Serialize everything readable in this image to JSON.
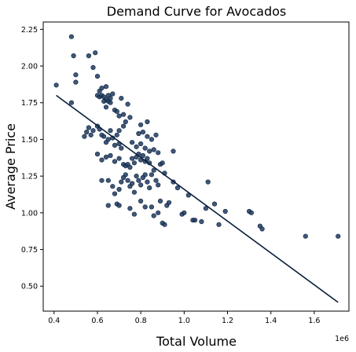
{
  "chart_data": {
    "type": "scatter",
    "title": "Demand Curve for Avocados",
    "xlabel": "Total Volume",
    "ylabel": "Average Price",
    "x_offset_label": "1e6",
    "xlim": [
      0.35,
      1.76
    ],
    "ylim": [
      0.33,
      2.3
    ],
    "x_ticks": [
      0.4,
      0.6,
      0.8,
      1.0,
      1.2,
      1.4,
      1.6
    ],
    "x_tick_labels": [
      "0.4",
      "0.6",
      "0.8",
      "1.0",
      "1.2",
      "1.4",
      "1.6"
    ],
    "y_ticks": [
      0.5,
      0.75,
      1.0,
      1.25,
      1.5,
      1.75,
      2.0,
      2.25
    ],
    "y_tick_labels": [
      "0.50",
      "0.75",
      "1.00",
      "1.25",
      "1.50",
      "1.75",
      "2.00",
      "2.25"
    ],
    "grid": false,
    "colors": {
      "points": "#1f3a5f",
      "point_edge": "#0d2240",
      "line": "#0a1f3d"
    },
    "series": [
      {
        "points": [
          [
            0.41,
            1.87
          ],
          [
            0.48,
            2.2
          ],
          [
            0.49,
            2.07
          ],
          [
            0.5,
            1.94
          ],
          [
            0.5,
            1.89
          ],
          [
            0.48,
            1.75
          ],
          [
            0.56,
            2.07
          ],
          [
            0.59,
            2.09
          ],
          [
            0.58,
            1.99
          ],
          [
            0.6,
            1.93
          ],
          [
            0.54,
            1.52
          ],
          [
            0.55,
            1.55
          ],
          [
            0.56,
            1.58
          ],
          [
            0.57,
            1.53
          ],
          [
            0.58,
            1.56
          ],
          [
            0.6,
            1.8
          ],
          [
            0.61,
            1.79
          ],
          [
            0.62,
            1.8
          ],
          [
            0.61,
            1.83
          ],
          [
            0.63,
            1.79
          ],
          [
            0.62,
            1.85
          ],
          [
            0.64,
            1.86
          ],
          [
            0.64,
            1.77
          ],
          [
            0.65,
            1.76
          ],
          [
            0.65,
            1.8
          ],
          [
            0.66,
            1.78
          ],
          [
            0.67,
            1.81
          ],
          [
            0.63,
            1.76
          ],
          [
            0.66,
            1.75
          ],
          [
            0.64,
            1.72
          ],
          [
            0.68,
            1.7
          ],
          [
            0.69,
            1.69
          ],
          [
            0.7,
            1.66
          ],
          [
            0.72,
            1.67
          ],
          [
            0.73,
            1.62
          ],
          [
            0.71,
            1.78
          ],
          [
            0.74,
            1.74
          ],
          [
            0.75,
            1.65
          ],
          [
            0.7,
            1.56
          ],
          [
            0.72,
            1.59
          ],
          [
            0.6,
            1.59
          ],
          [
            0.61,
            1.57
          ],
          [
            0.62,
            1.53
          ],
          [
            0.63,
            1.52
          ],
          [
            0.64,
            1.48
          ],
          [
            0.65,
            1.5
          ],
          [
            0.66,
            1.56
          ],
          [
            0.67,
            1.51
          ],
          [
            0.68,
            1.46
          ],
          [
            0.69,
            1.53
          ],
          [
            0.7,
            1.47
          ],
          [
            0.71,
            1.44
          ],
          [
            0.6,
            1.4
          ],
          [
            0.62,
            1.36
          ],
          [
            0.64,
            1.38
          ],
          [
            0.66,
            1.39
          ],
          [
            0.68,
            1.35
          ],
          [
            0.7,
            1.37
          ],
          [
            0.72,
            1.33
          ],
          [
            0.73,
            1.32
          ],
          [
            0.74,
            1.33
          ],
          [
            0.75,
            1.31
          ],
          [
            0.76,
            1.37
          ],
          [
            0.77,
            1.34
          ],
          [
            0.78,
            1.38
          ],
          [
            0.79,
            1.4
          ],
          [
            0.8,
            1.36
          ],
          [
            0.81,
            1.39
          ],
          [
            0.82,
            1.35
          ],
          [
            0.83,
            1.37
          ],
          [
            0.84,
            1.34
          ],
          [
            0.76,
            1.48
          ],
          [
            0.78,
            1.45
          ],
          [
            0.8,
            1.47
          ],
          [
            0.82,
            1.44
          ],
          [
            0.84,
            1.42
          ],
          [
            0.86,
            1.43
          ],
          [
            0.88,
            1.41
          ],
          [
            0.79,
            1.54
          ],
          [
            0.81,
            1.55
          ],
          [
            0.83,
            1.52
          ],
          [
            0.85,
            1.5
          ],
          [
            0.8,
            1.6
          ],
          [
            0.83,
            1.62
          ],
          [
            0.87,
            1.53
          ],
          [
            0.62,
            1.22
          ],
          [
            0.65,
            1.22
          ],
          [
            0.67,
            1.18
          ],
          [
            0.68,
            1.13
          ],
          [
            0.7,
            1.16
          ],
          [
            0.71,
            1.21
          ],
          [
            0.72,
            1.24
          ],
          [
            0.73,
            1.26
          ],
          [
            0.74,
            1.22
          ],
          [
            0.75,
            1.18
          ],
          [
            0.76,
            1.2
          ],
          [
            0.77,
            1.14
          ],
          [
            0.78,
            1.25
          ],
          [
            0.79,
            1.22
          ],
          [
            0.8,
            1.19
          ],
          [
            0.81,
            1.24
          ],
          [
            0.82,
            1.26
          ],
          [
            0.83,
            1.21
          ],
          [
            0.84,
            1.17
          ],
          [
            0.85,
            1.26
          ],
          [
            0.86,
            1.29
          ],
          [
            0.87,
            1.22
          ],
          [
            0.88,
            1.19
          ],
          [
            0.89,
            1.33
          ],
          [
            0.9,
            1.34
          ],
          [
            0.91,
            1.27
          ],
          [
            0.65,
            1.05
          ],
          [
            0.69,
            1.06
          ],
          [
            0.7,
            1.05
          ],
          [
            0.75,
            1.03
          ],
          [
            0.77,
            0.99
          ],
          [
            0.8,
            1.08
          ],
          [
            0.82,
            1.04
          ],
          [
            0.85,
            1.04
          ],
          [
            0.86,
            0.98
          ],
          [
            0.88,
            1.0
          ],
          [
            0.89,
            1.08
          ],
          [
            0.9,
            0.93
          ],
          [
            0.91,
            0.92
          ],
          [
            0.92,
            1.05
          ],
          [
            0.93,
            1.07
          ],
          [
            0.95,
            1.21
          ],
          [
            0.95,
            1.42
          ],
          [
            0.97,
            1.17
          ],
          [
            0.99,
            0.99
          ],
          [
            1.0,
            1.0
          ],
          [
            1.02,
            1.12
          ],
          [
            1.04,
            0.95
          ],
          [
            1.05,
            0.95
          ],
          [
            1.08,
            0.94
          ],
          [
            1.1,
            1.03
          ],
          [
            1.11,
            1.21
          ],
          [
            1.14,
            1.06
          ],
          [
            1.16,
            0.92
          ],
          [
            1.19,
            1.01
          ],
          [
            1.3,
            1.01
          ],
          [
            1.31,
            1.0
          ],
          [
            1.35,
            0.91
          ],
          [
            1.36,
            0.89
          ],
          [
            1.56,
            0.84
          ],
          [
            1.71,
            0.84
          ]
        ]
      }
    ],
    "trend_line": {
      "x": [
        0.41,
        1.71
      ],
      "y": [
        1.8,
        0.39
      ]
    }
  }
}
